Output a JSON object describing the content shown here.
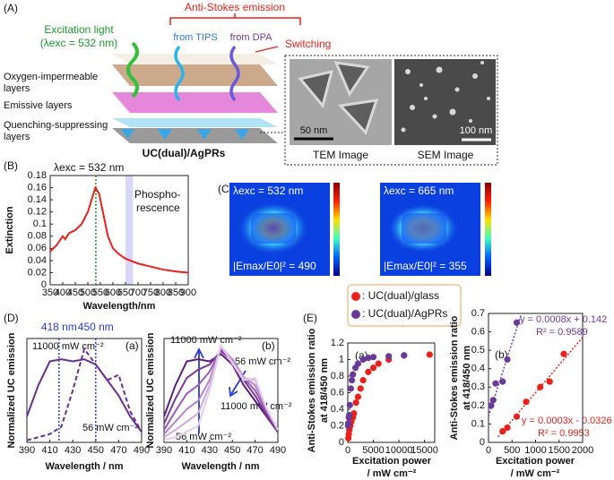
{
  "panel_a": {
    "tag": "(A)",
    "emission_title": "Anti-Stokes emission",
    "excitation": [
      "Excitation light",
      "(λexc = 532 nm)"
    ],
    "from_tips": "from TIPS",
    "from_dpa": "from DPA",
    "switching": "Switching",
    "layers": [
      [
        "Oxygen-impermeable",
        "layers"
      ],
      [
        "Emissive layers"
      ],
      [
        "Quenching-suppressing",
        "layers"
      ]
    ],
    "sample": "UC(dual)/AgPRs",
    "tem_scale": "50 nm",
    "sem_scale": "100 nm",
    "tem_label": "TEM Image",
    "sem_label": "SEM Image"
  },
  "panel_c": {
    "tag": "(C)",
    "maps": [
      {
        "excitation": "λexc = 532 nm",
        "enhancement": "|Emax/E0|² = 490"
      },
      {
        "excitation": "λexc = 665 nm",
        "enhancement": "|Emax/E0|² = 355"
      }
    ]
  },
  "panel_d": {
    "tag": "(D)"
  },
  "panel_e": {
    "tag": "(E)"
  },
  "chart_data": [
    {
      "type": "line",
      "tag": "(B)",
      "x_label": "Wavelength/nm",
      "y_label": "Extinction",
      "x": [
        350,
        375,
        400,
        410,
        425,
        450,
        475,
        500,
        515,
        530,
        545,
        560,
        580,
        600,
        625,
        650,
        700,
        750,
        800,
        850,
        900
      ],
      "series": [
        {
          "color": "#e8211b",
          "values": [
            0.055,
            0.065,
            0.08,
            0.075,
            0.085,
            0.09,
            0.1,
            0.12,
            0.14,
            0.16,
            0.15,
            0.12,
            0.08,
            0.06,
            0.05,
            0.043,
            0.035,
            0.03,
            0.025,
            0.022,
            0.02
          ]
        }
      ],
      "xlim": [
        350,
        900
      ],
      "xticks": [
        350,
        400,
        450,
        500,
        550,
        600,
        650,
        700,
        750,
        800,
        850,
        900
      ],
      "ylim": [
        0,
        0.18
      ],
      "yticks": [
        0,
        0.02,
        0.04,
        0.06,
        0.08,
        0.1,
        0.12,
        0.14,
        0.16,
        0.18
      ],
      "vlines": [
        {
          "value": 532,
          "color": "#1a9a2a"
        }
      ],
      "band": {
        "range": [
          650,
          680
        ],
        "color": "#c9c6f2"
      },
      "annotations": [
        "λexc = 532 nm",
        "Phospho-",
        "rescence"
      ]
    },
    {
      "type": "line",
      "tag": "(a)",
      "x_label": "Wavelength / nm",
      "y_label": "Normalized UC emission",
      "x": [
        390,
        400,
        410,
        420,
        430,
        440,
        450,
        460,
        470,
        480,
        490
      ],
      "series": [
        {
          "color": "#6a2f8e",
          "values": [
            0.25,
            0.55,
            0.78,
            0.8,
            0.78,
            0.8,
            0.75,
            0.6,
            0.45,
            0.25,
            0.1
          ]
        },
        {
          "color": "#6a2f8e",
          "dash": true,
          "values": [
            0.02,
            0.05,
            0.08,
            0.15,
            0.5,
            0.9,
            0.75,
            0.6,
            0.65,
            0.3,
            0.1
          ]
        }
      ],
      "xlim": [
        390,
        490
      ],
      "xticks": [
        390,
        410,
        430,
        450,
        470,
        490
      ],
      "ylim": [
        0,
        1
      ],
      "vlines": [
        {
          "value": 418,
          "label": "418 nm",
          "color": "#2a3bd8"
        },
        {
          "value": 450,
          "label": "450 nm",
          "color": "#2a3bd8"
        }
      ],
      "annotations": [
        "11000 mW cm⁻²",
        "56 mW cm⁻²"
      ]
    },
    {
      "type": "line",
      "tag": "(b)",
      "x_label": "Wavelength / nm",
      "y_label": "Normalized UC emission",
      "x": [
        390,
        400,
        410,
        420,
        430,
        440,
        450,
        460,
        470,
        480,
        490
      ],
      "series": [
        {
          "color": "#5b1f7a",
          "values": [
            0.25,
            0.55,
            0.78,
            0.8,
            0.78,
            0.85,
            0.75,
            0.55,
            0.4,
            0.25,
            0.1
          ]
        },
        {
          "color": "#7a3a98",
          "values": [
            0.18,
            0.42,
            0.62,
            0.7,
            0.75,
            0.88,
            0.78,
            0.6,
            0.45,
            0.27,
            0.1
          ]
        },
        {
          "color": "#9a5cb5",
          "values": [
            0.12,
            0.3,
            0.47,
            0.55,
            0.68,
            0.9,
            0.8,
            0.62,
            0.5,
            0.3,
            0.12
          ]
        },
        {
          "color": "#b583cc",
          "values": [
            0.08,
            0.2,
            0.32,
            0.4,
            0.6,
            0.92,
            0.8,
            0.63,
            0.55,
            0.32,
            0.12
          ]
        },
        {
          "color": "#cfa9de",
          "values": [
            0.05,
            0.12,
            0.2,
            0.28,
            0.55,
            0.93,
            0.78,
            0.62,
            0.6,
            0.33,
            0.12
          ]
        },
        {
          "color": "#e3cdeb",
          "values": [
            0.02,
            0.05,
            0.1,
            0.16,
            0.5,
            0.93,
            0.76,
            0.6,
            0.62,
            0.33,
            0.12
          ]
        }
      ],
      "xlim": [
        390,
        490
      ],
      "xticks": [
        390,
        410,
        430,
        450,
        470,
        490
      ],
      "ylim": [
        0,
        1
      ],
      "annotations": [
        "11000 mW cm⁻²",
        "56 mW cm⁻²",
        "11000 mW cm⁻²",
        "56 mW cm⁻²"
      ]
    },
    {
      "type": "scatter",
      "tag": "(a)",
      "x_label": [
        "Excitation power",
        "/ mW cm⁻²"
      ],
      "y_label": [
        "Anti-Stokes emission ratio",
        "at 418/450 nm"
      ],
      "series": [
        {
          "name": ": UC(dual)/glass",
          "color": "#e8211b",
          "x": [
            100,
            200,
            300,
            500,
            700,
            1000,
            1200,
            1600,
            2000,
            2500,
            3000,
            4000,
            5000,
            6000,
            8000,
            11000,
            16000
          ],
          "values": [
            0.05,
            0.1,
            0.15,
            0.2,
            0.25,
            0.3,
            0.35,
            0.48,
            0.55,
            0.65,
            0.75,
            0.85,
            0.9,
            0.95,
            1.0,
            1.05,
            1.06
          ]
        },
        {
          "name": ": UC(dual)/AgPRs",
          "color": "#6a3a9a",
          "x": [
            56,
            100,
            200,
            300,
            400,
            600,
            800,
            1000,
            1500,
            2000,
            3000,
            4000,
            5000,
            8000,
            11000
          ],
          "values": [
            0.2,
            0.23,
            0.3,
            0.33,
            0.45,
            0.65,
            0.75,
            0.82,
            0.9,
            0.95,
            1.0,
            1.02,
            1.03,
            1.04,
            1.05
          ]
        }
      ],
      "xlim": [
        0,
        17000
      ],
      "xticks": [
        0,
        5000,
        10000,
        15000
      ],
      "ylim": [
        0,
        1.2
      ],
      "yticks": [
        0,
        0.2,
        0.4,
        0.6,
        0.8,
        1,
        1.2
      ]
    },
    {
      "type": "scatter",
      "tag": "(b)",
      "x_label": [
        "Excitation power",
        "/ mW cm⁻²"
      ],
      "y_label": [
        "Anti-Stokes emission ratio",
        "at 418/450 nm"
      ],
      "series": [
        {
          "color": "#e8211b",
          "x": [
            300,
            400,
            600,
            800,
            1100,
            1300,
            1600
          ],
          "values": [
            0.06,
            0.08,
            0.14,
            0.22,
            0.3,
            0.33,
            0.48
          ]
        },
        {
          "color": "#6a3a9a",
          "x": [
            56,
            100,
            150,
            300,
            400,
            600
          ],
          "values": [
            0.2,
            0.23,
            0.32,
            0.33,
            0.45,
            0.65
          ]
        }
      ],
      "xlim": [
        0,
        2000
      ],
      "xticks": [
        0,
        500,
        1000,
        1500,
        2000
      ],
      "ylim": [
        0,
        0.7
      ],
      "yticks": [
        0,
        0.1,
        0.2,
        0.3,
        0.4,
        0.5,
        0.6,
        0.7
      ],
      "trendlines": [
        {
          "label": "y = 0.0008x + 0.142",
          "r2": "R² = 0.9589",
          "color": "#6a3a9a",
          "x": [
            0,
            700
          ],
          "values": [
            0.142,
            0.7
          ]
        },
        {
          "label": "y = 0.0003x - 0.0326",
          "r2": "R² = 0.9953",
          "color": "#e8211b",
          "x": [
            200,
            2000
          ],
          "values": [
            0.03,
            0.57
          ]
        }
      ]
    }
  ]
}
